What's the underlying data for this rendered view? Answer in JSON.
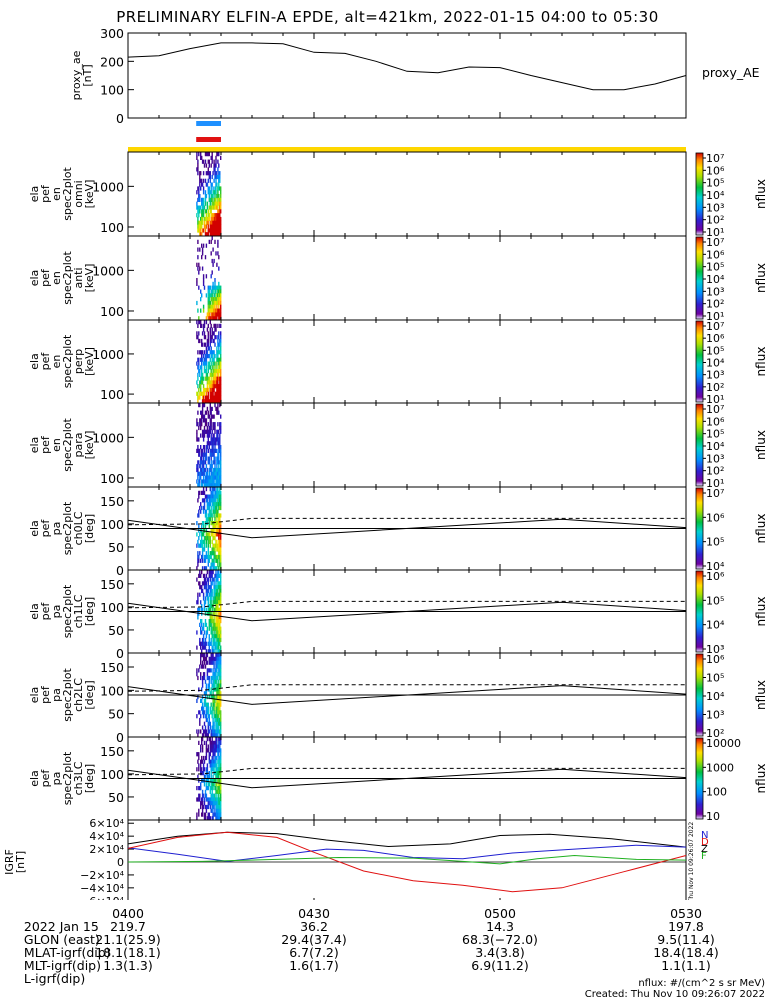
{
  "title": "PRELIMINARY ELFIN-A EPDE, alt=421km, 2022-01-15 04:00 to 05:30",
  "colors": {
    "bar_blue": "#1e90ff",
    "bar_red": "#e11111",
    "bar_yellow": "#ffd700",
    "geo_x": "#000000",
    "geo_y": "#1f1fd0",
    "geo_z": "#e01010",
    "geo_t": "#20b020"
  },
  "proxy_ae": {
    "ylabel": [
      "proxy_ae",
      "[nT]"
    ],
    "yticks": [
      "300",
      "200",
      "100",
      "0"
    ],
    "side_label": "proxy_AE"
  },
  "panels": [
    {
      "ylabel": [
        "ela",
        "pef",
        "en",
        "spec2plot",
        "omni",
        "[keV]"
      ],
      "yticks": [
        "1000",
        "100"
      ],
      "cb_ticks": [
        "10⁷",
        "10⁶",
        "10⁵",
        "10⁴",
        "10³",
        "10²",
        "10¹"
      ],
      "cb_label": "nflux"
    },
    {
      "ylabel": [
        "ela",
        "pef",
        "en",
        "spec2plot",
        "anti",
        "[keV]"
      ],
      "yticks": [
        "1000",
        "100"
      ],
      "cb_ticks": [
        "10⁷",
        "10⁶",
        "10⁵",
        "10⁴",
        "10³",
        "10²",
        "10¹"
      ],
      "cb_label": "nflux"
    },
    {
      "ylabel": [
        "ela",
        "pef",
        "en",
        "spec2plot",
        "perp",
        "[keV]"
      ],
      "yticks": [
        "1000",
        "100"
      ],
      "cb_ticks": [
        "10⁷",
        "10⁶",
        "10⁵",
        "10⁴",
        "10³",
        "10²",
        "10¹"
      ],
      "cb_label": "nflux"
    },
    {
      "ylabel": [
        "ela",
        "pef",
        "en",
        "spec2plot",
        "para",
        "[keV]"
      ],
      "yticks": [
        "1000",
        "100"
      ],
      "cb_ticks": [
        "10⁷",
        "10⁶",
        "10⁵",
        "10⁴",
        "10³",
        "10²",
        "10¹"
      ],
      "cb_label": "nflux"
    },
    {
      "ylabel": [
        "ela",
        "pef",
        "pa",
        "spec2plot",
        "ch0LC",
        "[deg]"
      ],
      "yticks": [
        "150",
        "100",
        "50",
        "0"
      ],
      "cb_ticks": [
        "10⁷",
        "10⁶",
        "10⁵",
        "10⁴"
      ],
      "cb_label": "nflux"
    },
    {
      "ylabel": [
        "ela",
        "pef",
        "pa",
        "spec2plot",
        "ch1LC",
        "[deg]"
      ],
      "yticks": [
        "150",
        "100",
        "50",
        "0"
      ],
      "cb_ticks": [
        "10⁶",
        "10⁵",
        "10⁴",
        "10³"
      ],
      "cb_label": "nflux"
    },
    {
      "ylabel": [
        "ela",
        "pef",
        "pa",
        "spec2plot",
        "ch2LC",
        "[deg]"
      ],
      "yticks": [
        "150",
        "100",
        "50",
        "0"
      ],
      "cb_ticks": [
        "10⁶",
        "10⁵",
        "10⁴",
        "10³",
        "10²"
      ],
      "cb_label": "nflux"
    },
    {
      "ylabel": [
        "ela",
        "pef",
        "pa",
        "spec2plot",
        "ch3LC",
        "[deg]"
      ],
      "yticks": [
        "150",
        "100",
        "50"
      ],
      "cb_ticks": [
        "10000",
        "1000",
        "100",
        "10"
      ],
      "cb_label": "nflux"
    }
  ],
  "igrf": {
    "ylabel": [
      "IGRF",
      "[nT]"
    ],
    "yticks": [
      "6×10⁴",
      "4×10⁴",
      "2×10⁴",
      "0",
      "−2×10⁴",
      "−4×10⁴",
      "−6×10⁴"
    ],
    "legend": [
      "N",
      "D",
      "Z",
      "F"
    ],
    "stamp": "Thu Nov 10 09:26:07 2022"
  },
  "chart_data": {
    "type": "line",
    "title": "PRELIMINARY ELFIN-A EPDE, alt=421km, 2022-01-15 04:00 to 05:30",
    "x_ticks": [
      "0400",
      "0430",
      "0500",
      "0530"
    ],
    "proxy_ae_series": {
      "name": "proxy_AE",
      "x_min": [
        0,
        5,
        10,
        15,
        20,
        25,
        30,
        35,
        40,
        45,
        50,
        55,
        60,
        65,
        70,
        75,
        80,
        85,
        90
      ],
      "values": [
        215,
        220,
        245,
        265,
        265,
        262,
        232,
        228,
        200,
        165,
        160,
        180,
        178,
        150,
        125,
        100,
        100,
        120,
        150
      ],
      "ylim": [
        0,
        300
      ]
    },
    "science_zone_min": [
      11,
      15
    ],
    "pitch_angle_ylim": [
      0,
      180
    ],
    "energy_ylim_keV": [
      60,
      7000
    ]
  },
  "footer": {
    "rows": [
      {
        "label": "2022 Jan 15",
        "values": [
          "0400",
          "0430",
          "0500",
          "0530"
        ]
      },
      {
        "label": "GLON (east)",
        "values": [
          "219.7",
          "36.2",
          "14.3",
          "197.8"
        ]
      },
      {
        "label": "MLAT-igrf(dip)",
        "values": [
          "21.1(25.9)",
          "29.4(37.4)",
          "68.3(−72.0)",
          "9.5(11.4)"
        ]
      },
      {
        "label": "MLT-igrf(dip)",
        "values": [
          "18.1(18.1)",
          "6.7(7.2)",
          "3.4(3.8)",
          "18.4(18.4)"
        ]
      },
      {
        "label": "L-igrf(dip)",
        "values": [
          "1.3(1.3)",
          "1.6(1.7)",
          "6.9(11.2)",
          "1.1(1.1)"
        ]
      }
    ],
    "units_note": "nflux: #/(cm^2 s sr MeV)",
    "created": "Created: Thu Nov 10 09:26:07 2022"
  }
}
